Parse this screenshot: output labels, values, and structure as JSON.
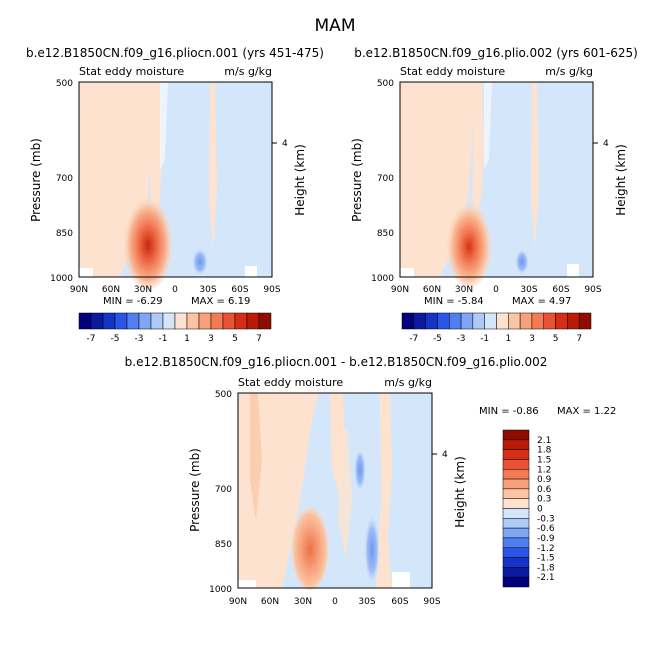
{
  "page_title": "MAM",
  "chart_data": [
    {
      "type": "heatmap",
      "title": "b.e12.B1850CN.f09_g16.pliocn.001 (yrs 451-475)",
      "variable_label": "Stat eddy moisture",
      "units_label": "m/s g/kg",
      "ylabel": "Pressure (mb)",
      "ylabel_right": "Height (km)",
      "x_ticks": [
        "90N",
        "60N",
        "30N",
        "0",
        "30S",
        "60S",
        "90S"
      ],
      "y_ticks": [
        "500",
        "700",
        "850",
        "1000"
      ],
      "right_ticks": [
        "4"
      ],
      "min_label": "MIN = -6.29",
      "max_label": "MAX = 6.19",
      "min": -6.29,
      "max": 6.19,
      "features": [
        {
          "lat": 22,
          "p": 920,
          "value": 6.19,
          "sign": "positive"
        },
        {
          "lat": -20,
          "p": 950,
          "value": -2.5,
          "sign": "negative"
        }
      ]
    },
    {
      "type": "heatmap",
      "title": "b.e12.B1850CN.f09_g16.plio.002 (yrs 601-625)",
      "variable_label": "Stat eddy moisture",
      "units_label": "m/s g/kg",
      "ylabel": "Pressure (mb)",
      "ylabel_right": "Height (km)",
      "x_ticks": [
        "90N",
        "60N",
        "30N",
        "0",
        "30S",
        "60S",
        "90S"
      ],
      "y_ticks": [
        "500",
        "700",
        "850",
        "1000"
      ],
      "right_ticks": [
        "4"
      ],
      "min_label": "MIN = -5.84",
      "max_label": "MAX = 4.97",
      "min": -5.84,
      "max": 4.97,
      "features": [
        {
          "lat": 22,
          "p": 920,
          "value": 4.97,
          "sign": "positive"
        },
        {
          "lat": -20,
          "p": 950,
          "value": -2.0,
          "sign": "negative"
        }
      ]
    },
    {
      "type": "heatmap",
      "title": "b.e12.B1850CN.f09_g16.pliocn.001 - b.e12.B1850CN.f09_g16.plio.002",
      "variable_label": "Stat eddy moisture",
      "units_label": "m/s g/kg",
      "ylabel": "Pressure (mb)",
      "ylabel_right": "Height (km)",
      "x_ticks": [
        "90N",
        "60N",
        "30N",
        "0",
        "30S",
        "60S",
        "90S"
      ],
      "y_ticks": [
        "500",
        "700",
        "850",
        "1000"
      ],
      "right_ticks": [
        "4"
      ],
      "min_label": "MIN = -0.86",
      "max_label": "MAX = 1.22",
      "min": -0.86,
      "max": 1.22,
      "features": [
        {
          "lat": 22,
          "p": 940,
          "value": 1.22,
          "sign": "positive"
        },
        {
          "lat": -15,
          "p": 950,
          "value": -0.86,
          "sign": "negative"
        }
      ]
    }
  ],
  "colorbar_top": {
    "labels": [
      "-7",
      "-5",
      "-3",
      "-1",
      "1",
      "3",
      "5",
      "7"
    ],
    "colors": [
      "#00007f",
      "#0a1a9e",
      "#1633c8",
      "#2a55e6",
      "#4f7ff0",
      "#7fa6f5",
      "#aecbf7",
      "#d4e6fa",
      "#fde3cf",
      "#fbc4a2",
      "#f7a07a",
      "#f27a55",
      "#e95233",
      "#d62e15",
      "#b71a07",
      "#8f0d00"
    ]
  },
  "colorbar_diff": {
    "labels": [
      "2.1",
      "1.8",
      "1.5",
      "1.2",
      "0.9",
      "0.6",
      "0.3",
      "0",
      "-0.3",
      "-0.6",
      "-0.9",
      "-1.2",
      "-1.5",
      "-1.8",
      "-2.1"
    ],
    "colors": [
      "#8f0d00",
      "#b71a07",
      "#d62e15",
      "#e95233",
      "#f27a55",
      "#f7a07a",
      "#fbc4a2",
      "#fde3cf",
      "#d4e6fa",
      "#aecbf7",
      "#7fa6f5",
      "#4f7ff0",
      "#2a55e6",
      "#1633c8",
      "#0a1a9e",
      "#00007f"
    ]
  }
}
